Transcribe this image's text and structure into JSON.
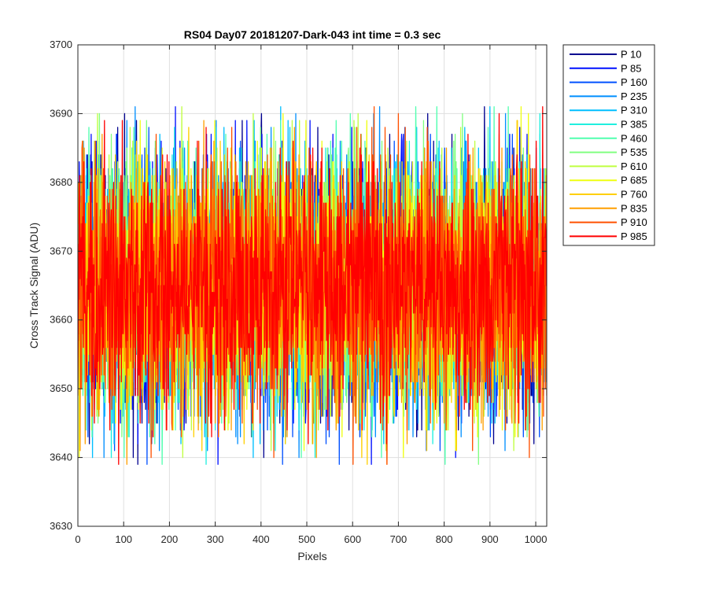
{
  "chart_data": {
    "type": "line",
    "title": "RS04 Day07 20181207-Dark-043 int time = 0.3 sec",
    "xlabel": "Pixels",
    "ylabel": "Cross Track Signal (ADU)",
    "xlim": [
      0,
      1024
    ],
    "ylim": [
      3630,
      3700
    ],
    "xticks": [
      0,
      100,
      200,
      300,
      400,
      500,
      600,
      700,
      800,
      900,
      1000
    ],
    "yticks": [
      3630,
      3640,
      3650,
      3660,
      3670,
      3680,
      3690,
      3700
    ],
    "grid": true,
    "legend_position": "outside-top-right",
    "noise_model": {
      "mean": 3665,
      "band_min": 3651,
      "band_max": 3680,
      "overall_min": 3639,
      "overall_max": 3691,
      "num_pixels": 1024
    },
    "series": [
      {
        "name": "P 10",
        "color": "#00008f"
      },
      {
        "name": "P 85",
        "color": "#0010ff"
      },
      {
        "name": "P 160",
        "color": "#0050ff"
      },
      {
        "name": "P 235",
        "color": "#008fff"
      },
      {
        "name": "P 310",
        "color": "#00bfff"
      },
      {
        "name": "P 385",
        "color": "#20efdf"
      },
      {
        "name": "P 460",
        "color": "#50ffaf"
      },
      {
        "name": "P 535",
        "color": "#80ff80"
      },
      {
        "name": "P 610",
        "color": "#bfff40"
      },
      {
        "name": "P 685",
        "color": "#efff10"
      },
      {
        "name": "P 760",
        "color": "#ffcf00"
      },
      {
        "name": "P 835",
        "color": "#ff9f00"
      },
      {
        "name": "P 910",
        "color": "#ff5000"
      },
      {
        "name": "P 985",
        "color": "#ff0000"
      }
    ]
  }
}
